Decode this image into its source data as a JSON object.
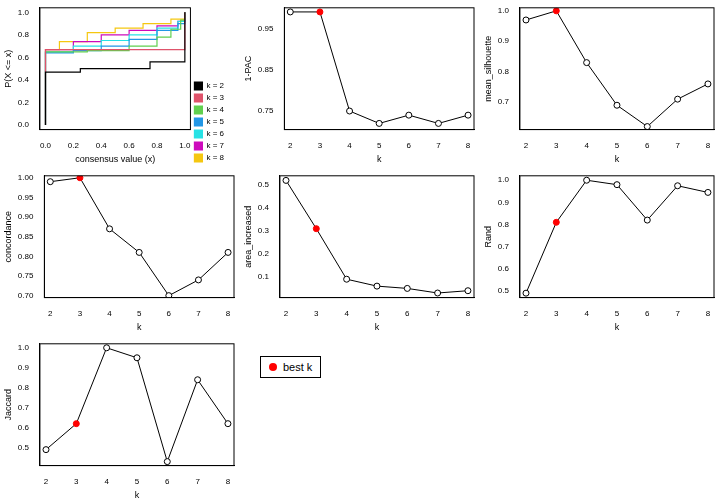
{
  "chart_data": [
    {
      "type": "step",
      "x_label": "consensus value (x)",
      "y_label": "P(X <= x)",
      "xlim": [
        -0.04,
        1.04
      ],
      "ylim": [
        -0.04,
        1.04
      ],
      "xticks": [
        {
          "value": 0,
          "label": "0.0"
        },
        {
          "value": 0.2,
          "label": "0.2"
        },
        {
          "value": 0.4,
          "label": "0.4"
        },
        {
          "value": 0.6,
          "label": "0.6"
        },
        {
          "value": 0.8,
          "label": "0.8"
        },
        {
          "value": 1,
          "label": "1.0"
        }
      ],
      "yticks": [
        {
          "value": 0,
          "label": "0.0"
        },
        {
          "value": 0.2,
          "label": "0.2"
        },
        {
          "value": 0.4,
          "label": "0.4"
        },
        {
          "value": 0.6,
          "label": "0.6"
        },
        {
          "value": 0.8,
          "label": "0.8"
        },
        {
          "value": 1,
          "label": "1.0"
        }
      ],
      "grid": false,
      "legend": "right",
      "series": [
        {
          "name": "k = 2",
          "color": "#000000",
          "x": [
            0,
            0,
            0.25,
            0.75,
            1
          ],
          "values": [
            0,
            0.47,
            0.5,
            0.56,
            1
          ]
        },
        {
          "name": "k = 3",
          "color": "#DF536B",
          "x": [
            0,
            0,
            1
          ],
          "values": [
            0,
            0.67,
            1
          ]
        },
        {
          "name": "k = 4",
          "color": "#61D04F",
          "x": [
            0,
            0,
            0.3,
            0.6,
            0.8,
            0.9,
            0.97,
            1
          ],
          "values": [
            0,
            0.65,
            0.66,
            0.7,
            0.78,
            0.85,
            0.93,
            1
          ]
        },
        {
          "name": "k = 5",
          "color": "#2297E6",
          "x": [
            0,
            0,
            0.2,
            0.4,
            0.6,
            0.8,
            0.95,
            1
          ],
          "values": [
            0,
            0.64,
            0.66,
            0.7,
            0.76,
            0.84,
            0.9,
            1
          ]
        },
        {
          "name": "k = 6",
          "color": "#28E2E5",
          "x": [
            0,
            0,
            0.2,
            0.4,
            0.6,
            0.8,
            0.95,
            1
          ],
          "values": [
            0,
            0.65,
            0.7,
            0.75,
            0.8,
            0.86,
            0.92,
            1
          ]
        },
        {
          "name": "k = 7",
          "color": "#CD0BBC",
          "x": [
            0,
            0,
            0.2,
            0.4,
            0.6,
            0.8,
            0.95,
            1
          ],
          "values": [
            0,
            0.67,
            0.74,
            0.8,
            0.84,
            0.88,
            0.92,
            1
          ]
        },
        {
          "name": "k = 8",
          "color": "#F5C710",
          "x": [
            0,
            0,
            0.1,
            0.3,
            0.5,
            0.7,
            0.9,
            1
          ],
          "values": [
            0,
            0.67,
            0.74,
            0.82,
            0.86,
            0.9,
            0.94,
            1
          ]
        }
      ]
    },
    {
      "type": "line",
      "x_label": "k",
      "y_label": "1-PAC",
      "x": [
        2,
        3,
        4,
        5,
        6,
        7,
        8
      ],
      "values": [
        0.99,
        0.99,
        0.75,
        0.72,
        0.74,
        0.72,
        0.74
      ],
      "color": "#000000",
      "marker": "circle",
      "colors": [
        "#000000",
        "#FF0000",
        "#000000",
        "#000000",
        "#000000",
        "#000000",
        "#000000"
      ],
      "xlim": [
        1.8,
        8.2
      ],
      "xticks": [
        2,
        3,
        4,
        5,
        6,
        7,
        8
      ],
      "ylim": [
        0.705,
        1.0
      ],
      "yticks": [
        0.75,
        0.85,
        0.95
      ],
      "grid": false
    },
    {
      "type": "line",
      "x_label": "k",
      "y_label": "mean_silhouette",
      "x": [
        2,
        3,
        4,
        5,
        6,
        7,
        8
      ],
      "values": [
        0.97,
        1.0,
        0.83,
        0.69,
        0.62,
        0.71,
        0.76
      ],
      "color": "#000000",
      "marker": "circle",
      "colors": [
        "#000000",
        "#FF0000",
        "#000000",
        "#000000",
        "#000000",
        "#000000",
        "#000000"
      ],
      "xlim": [
        1.8,
        8.2
      ],
      "xticks": [
        2,
        3,
        4,
        5,
        6,
        7,
        8
      ],
      "ylim": [
        0.61,
        1.01
      ],
      "yticks": [
        0.7,
        0.8,
        0.9,
        {
          "value": 1,
          "label": "1.0"
        }
      ],
      "grid": false
    },
    {
      "type": "line",
      "x_label": "k",
      "y_label": "concordance",
      "x": [
        2,
        3,
        4,
        5,
        6,
        7,
        8
      ],
      "values": [
        0.99,
        1.0,
        0.87,
        0.81,
        0.7,
        0.74,
        0.81
      ],
      "color": "#000000",
      "marker": "circle",
      "colors": [
        "#000000",
        "#FF0000",
        "#000000",
        "#000000",
        "#000000",
        "#000000",
        "#000000"
      ],
      "xlim": [
        1.8,
        8.2
      ],
      "xticks": [
        2,
        3,
        4,
        5,
        6,
        7,
        8
      ],
      "ylim": [
        0.695,
        1.005
      ],
      "yticks": [
        {
          "value": 0.7,
          "label": "0.70"
        },
        0.75,
        {
          "value": 0.8,
          "label": "0.80"
        },
        0.85,
        {
          "value": 0.9,
          "label": "0.90"
        },
        0.95,
        {
          "value": 1,
          "label": "1.00"
        }
      ],
      "grid": false
    },
    {
      "type": "line",
      "x_label": "k",
      "y_label": "area_increased",
      "x": [
        2,
        3,
        4,
        5,
        6,
        7,
        8
      ],
      "values": [
        0.52,
        0.31,
        0.09,
        0.06,
        0.05,
        0.03,
        0.04
      ],
      "color": "#000000",
      "marker": "circle",
      "colors": [
        "#000000",
        "#FF0000",
        "#000000",
        "#000000",
        "#000000",
        "#000000",
        "#000000"
      ],
      "xlim": [
        1.8,
        8.2
      ],
      "xticks": [
        2,
        3,
        4,
        5,
        6,
        7,
        8
      ],
      "ylim": [
        0.01,
        0.54
      ],
      "yticks": [
        0.1,
        0.2,
        0.3,
        0.4,
        0.5
      ],
      "grid": false
    },
    {
      "type": "line",
      "x_label": "k",
      "y_label": "Rand",
      "x": [
        2,
        3,
        4,
        5,
        6,
        7,
        8
      ],
      "values": [
        0.49,
        0.81,
        1.0,
        0.98,
        0.82,
        0.975,
        0.945
      ],
      "color": "#000000",
      "marker": "circle",
      "colors": [
        "#000000",
        "#FF0000",
        "#000000",
        "#000000",
        "#000000",
        "#000000",
        "#000000"
      ],
      "xlim": [
        1.8,
        8.2
      ],
      "xticks": [
        2,
        3,
        4,
        5,
        6,
        7,
        8
      ],
      "ylim": [
        0.47,
        1.02
      ],
      "yticks": [
        0.5,
        0.6,
        0.7,
        0.8,
        0.9,
        {
          "value": 1,
          "label": "1.0"
        }
      ],
      "grid": false
    },
    {
      "type": "line",
      "x_label": "k",
      "y_label": "Jaccard",
      "x": [
        2,
        3,
        4,
        5,
        6,
        7,
        8
      ],
      "values": [
        0.49,
        0.62,
        1.0,
        0.95,
        0.43,
        0.84,
        0.62
      ],
      "color": "#000000",
      "marker": "circle",
      "colors": [
        "#000000",
        "#FF0000",
        "#000000",
        "#000000",
        "#000000",
        "#000000",
        "#000000"
      ],
      "xlim": [
        1.8,
        8.2
      ],
      "xticks": [
        2,
        3,
        4,
        5,
        6,
        7,
        8
      ],
      "ylim": [
        0.41,
        1.02
      ],
      "yticks": [
        0.5,
        0.6,
        0.7,
        0.8,
        0.9,
        {
          "value": 1,
          "label": "1.0"
        }
      ],
      "grid": false
    }
  ],
  "legend_box": {
    "label": "best k",
    "color": "#FF0000"
  }
}
